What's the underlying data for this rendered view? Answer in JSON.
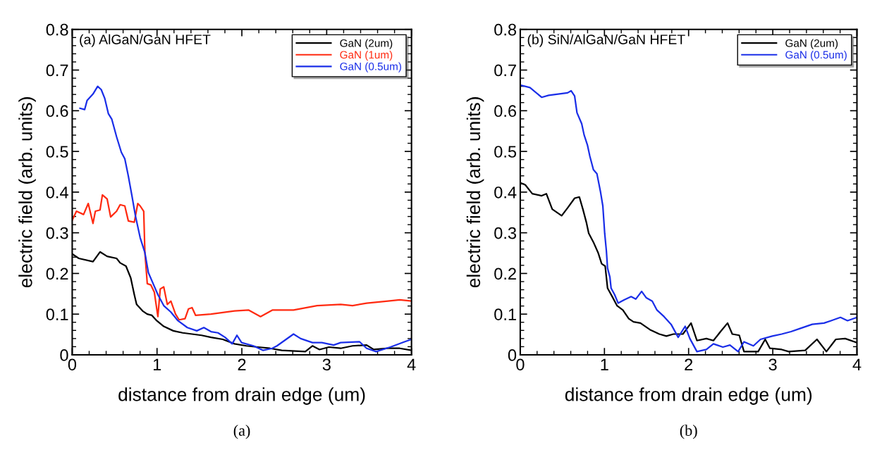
{
  "chart_data": [
    {
      "type": "line",
      "title": "(a) AlGaN/GaN HFET",
      "xlabel": "distance from drain edge (um)",
      "ylabel": "electric field (arb. units)",
      "annotations": [
        "(a)"
      ],
      "xlim": [
        0,
        4
      ],
      "ylim": [
        0,
        0.8
      ],
      "xticks": [
        0,
        1,
        2,
        3,
        4
      ],
      "yticks": [
        0,
        0.1,
        0.2,
        0.3,
        0.4,
        0.5,
        0.6,
        0.7,
        0.8
      ],
      "grid": false,
      "legend": "top right",
      "series": [
        {
          "name": "GaN (2um)",
          "color": "#000000",
          "x": [
            0,
            0.078,
            0.245,
            0.328,
            0.412,
            0.523,
            0.565,
            0.634,
            0.69,
            0.732,
            0.759,
            0.829,
            0.884,
            0.94,
            0.996,
            1.079,
            1.191,
            1.302,
            1.413,
            1.524,
            1.636,
            1.775,
            1.914,
            2.053,
            2.192,
            2.331,
            2.47,
            2.748,
            2.832,
            2.915,
            3.026,
            3.165,
            3.305,
            3.471,
            3.555,
            3.722,
            3.861,
            4.0
          ],
          "values": [
            0.248,
            0.237,
            0.229,
            0.253,
            0.242,
            0.237,
            0.226,
            0.218,
            0.189,
            0.148,
            0.124,
            0.108,
            0.1,
            0.097,
            0.084,
            0.07,
            0.059,
            0.054,
            0.051,
            0.048,
            0.043,
            0.038,
            0.027,
            0.022,
            0.019,
            0.016,
            0.011,
            0.008,
            0.022,
            0.013,
            0.019,
            0.016,
            0.022,
            0.024,
            0.013,
            0.016,
            0.016,
            0.011
          ]
        },
        {
          "name": "GaN (1um)",
          "color": "#ff2a10",
          "x": [
            0,
            0.05,
            0.134,
            0.189,
            0.245,
            0.273,
            0.328,
            0.356,
            0.412,
            0.453,
            0.523,
            0.565,
            0.62,
            0.662,
            0.732,
            0.773,
            0.801,
            0.843,
            0.857,
            0.885,
            0.926,
            0.968,
            1.01,
            1.038,
            1.079,
            1.121,
            1.163,
            1.218,
            1.26,
            1.33,
            1.371,
            1.413,
            1.455,
            1.636,
            1.914,
            2.081,
            2.22,
            2.359,
            2.609,
            2.887,
            3.165,
            3.305,
            3.471,
            3.722,
            3.861,
            4.0
          ],
          "values": [
            0.331,
            0.353,
            0.345,
            0.372,
            0.323,
            0.353,
            0.356,
            0.393,
            0.383,
            0.339,
            0.353,
            0.369,
            0.366,
            0.329,
            0.326,
            0.372,
            0.366,
            0.353,
            0.251,
            0.175,
            0.172,
            0.154,
            0.094,
            0.162,
            0.167,
            0.124,
            0.132,
            0.1,
            0.086,
            0.089,
            0.113,
            0.116,
            0.097,
            0.1,
            0.108,
            0.11,
            0.094,
            0.11,
            0.11,
            0.121,
            0.124,
            0.121,
            0.127,
            0.132,
            0.135,
            0.132
          ]
        },
        {
          "name": "GaN (0.5um)",
          "color": "#1a2ee8",
          "x": [
            0.092,
            0.147,
            0.175,
            0.245,
            0.3,
            0.342,
            0.384,
            0.426,
            0.467,
            0.523,
            0.579,
            0.62,
            0.662,
            0.704,
            0.745,
            0.801,
            0.857,
            0.898,
            0.954,
            1.01,
            1.079,
            1.163,
            1.246,
            1.357,
            1.469,
            1.552,
            1.636,
            1.719,
            1.802,
            1.886,
            1.942,
            1.997,
            2.136,
            2.248,
            2.359,
            2.414,
            2.609,
            2.693,
            2.832,
            2.943,
            3.082,
            3.165,
            3.388,
            3.471,
            3.583,
            3.75,
            3.917,
            4.0
          ],
          "values": [
            0.606,
            0.603,
            0.625,
            0.641,
            0.66,
            0.652,
            0.63,
            0.593,
            0.579,
            0.536,
            0.498,
            0.482,
            0.439,
            0.391,
            0.342,
            0.288,
            0.251,
            0.202,
            0.175,
            0.148,
            0.121,
            0.105,
            0.084,
            0.067,
            0.059,
            0.067,
            0.057,
            0.054,
            0.043,
            0.027,
            0.048,
            0.03,
            0.022,
            0.011,
            0.016,
            0.022,
            0.051,
            0.04,
            0.03,
            0.03,
            0.024,
            0.03,
            0.032,
            0.016,
            0.008,
            0.019,
            0.032,
            0.038
          ]
        }
      ]
    },
    {
      "type": "line",
      "title": "(b) SiN/AlGaN/GaN HFET",
      "xlabel": "distance from drain edge (um)",
      "ylabel": "electric field (arb. units)",
      "annotations": [
        "(b)"
      ],
      "xlim": [
        0,
        4
      ],
      "ylim": [
        0,
        0.8
      ],
      "xticks": [
        0,
        1,
        2,
        3,
        4
      ],
      "yticks": [
        0,
        0.1,
        0.2,
        0.3,
        0.4,
        0.5,
        0.6,
        0.7,
        0.8
      ],
      "grid": false,
      "legend": "top right",
      "series": [
        {
          "name": "GaN (2um)",
          "color": "#000000",
          "x": [
            0,
            0.059,
            0.143,
            0.254,
            0.31,
            0.38,
            0.492,
            0.562,
            0.646,
            0.702,
            0.744,
            0.785,
            0.813,
            0.869,
            0.925,
            0.967,
            1.009,
            1.037,
            1.093,
            1.149,
            1.219,
            1.289,
            1.345,
            1.428,
            1.54,
            1.652,
            1.736,
            1.82,
            1.932,
            2.029,
            2.099,
            2.211,
            2.295,
            2.379,
            2.463,
            2.519,
            2.602,
            2.658,
            2.826,
            2.91,
            2.966,
            3.106,
            3.189,
            3.385,
            3.525,
            3.637,
            3.749,
            3.86,
            4.0
          ],
          "values": [
            0.423,
            0.418,
            0.396,
            0.391,
            0.396,
            0.358,
            0.342,
            0.361,
            0.385,
            0.388,
            0.358,
            0.326,
            0.299,
            0.277,
            0.251,
            0.224,
            0.218,
            0.164,
            0.143,
            0.121,
            0.11,
            0.089,
            0.081,
            0.078,
            0.062,
            0.051,
            0.046,
            0.051,
            0.051,
            0.078,
            0.035,
            0.04,
            0.035,
            0.057,
            0.078,
            0.051,
            0.048,
            0.008,
            0.008,
            0.038,
            0.016,
            0.013,
            0.008,
            0.011,
            0.038,
            0.008,
            0.038,
            0.04,
            0.03
          ]
        },
        {
          "name": "GaN (0.5um)",
          "color": "#1a2ee8",
          "x": [
            0,
            0.115,
            0.254,
            0.338,
            0.45,
            0.562,
            0.604,
            0.646,
            0.674,
            0.73,
            0.758,
            0.799,
            0.827,
            0.869,
            0.911,
            0.953,
            0.981,
            1.003,
            1.023,
            1.037,
            1.065,
            1.079,
            1.121,
            1.163,
            1.233,
            1.317,
            1.372,
            1.442,
            1.498,
            1.568,
            1.624,
            1.708,
            1.792,
            1.876,
            1.959,
            2.015,
            2.099,
            2.211,
            2.295,
            2.407,
            2.491,
            2.588,
            2.658,
            2.77,
            2.854,
            2.994,
            3.106,
            3.217,
            3.329,
            3.469,
            3.609,
            3.693,
            3.804,
            3.888,
            4.0
          ],
          "values": [
            0.663,
            0.657,
            0.633,
            0.638,
            0.641,
            0.644,
            0.649,
            0.636,
            0.595,
            0.568,
            0.541,
            0.515,
            0.488,
            0.455,
            0.445,
            0.401,
            0.366,
            0.299,
            0.256,
            0.213,
            0.191,
            0.164,
            0.148,
            0.127,
            0.135,
            0.143,
            0.137,
            0.156,
            0.14,
            0.132,
            0.11,
            0.094,
            0.075,
            0.043,
            0.07,
            0.04,
            0.008,
            0.013,
            0.027,
            0.019,
            0.024,
            0.008,
            0.032,
            0.022,
            0.038,
            0.046,
            0.051,
            0.057,
            0.065,
            0.075,
            0.078,
            0.084,
            0.092,
            0.084,
            0.092
          ]
        }
      ]
    }
  ]
}
